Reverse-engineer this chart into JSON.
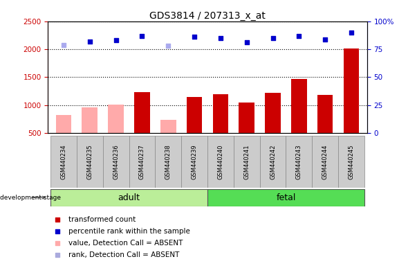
{
  "title": "GDS3814 / 207313_x_at",
  "samples": [
    "GSM440234",
    "GSM440235",
    "GSM440236",
    "GSM440237",
    "GSM440238",
    "GSM440239",
    "GSM440240",
    "GSM440241",
    "GSM440242",
    "GSM440243",
    "GSM440244",
    "GSM440245"
  ],
  "bar_values": [
    820,
    960,
    1010,
    1230,
    740,
    1150,
    1190,
    1040,
    1220,
    1470,
    1180,
    2010
  ],
  "bar_absent": [
    true,
    true,
    true,
    false,
    true,
    false,
    false,
    false,
    false,
    false,
    false,
    false
  ],
  "rank_values": [
    79,
    82,
    83,
    87,
    78,
    86,
    85,
    81,
    85,
    87,
    84,
    90
  ],
  "rank_absent": [
    true,
    false,
    false,
    false,
    true,
    false,
    false,
    false,
    false,
    false,
    false,
    false
  ],
  "adult_count": 6,
  "fetal_count": 6,
  "ylim_left": [
    500,
    2500
  ],
  "ylim_right": [
    0,
    100
  ],
  "yticks_left": [
    500,
    1000,
    1500,
    2000,
    2500
  ],
  "yticks_right": [
    0,
    25,
    50,
    75,
    100
  ],
  "bar_color_present": "#cc0000",
  "bar_color_absent": "#ffaaaa",
  "rank_color_present": "#0000cc",
  "rank_color_absent": "#aaaaee",
  "adult_bg": "#bbee99",
  "fetal_bg": "#55dd55",
  "sample_bg": "#cccccc",
  "legend_items": [
    {
      "label": "transformed count",
      "color": "#cc0000"
    },
    {
      "label": "percentile rank within the sample",
      "color": "#0000cc"
    },
    {
      "label": "value, Detection Call = ABSENT",
      "color": "#ffaaaa"
    },
    {
      "label": "rank, Detection Call = ABSENT",
      "color": "#aaaadd"
    }
  ]
}
